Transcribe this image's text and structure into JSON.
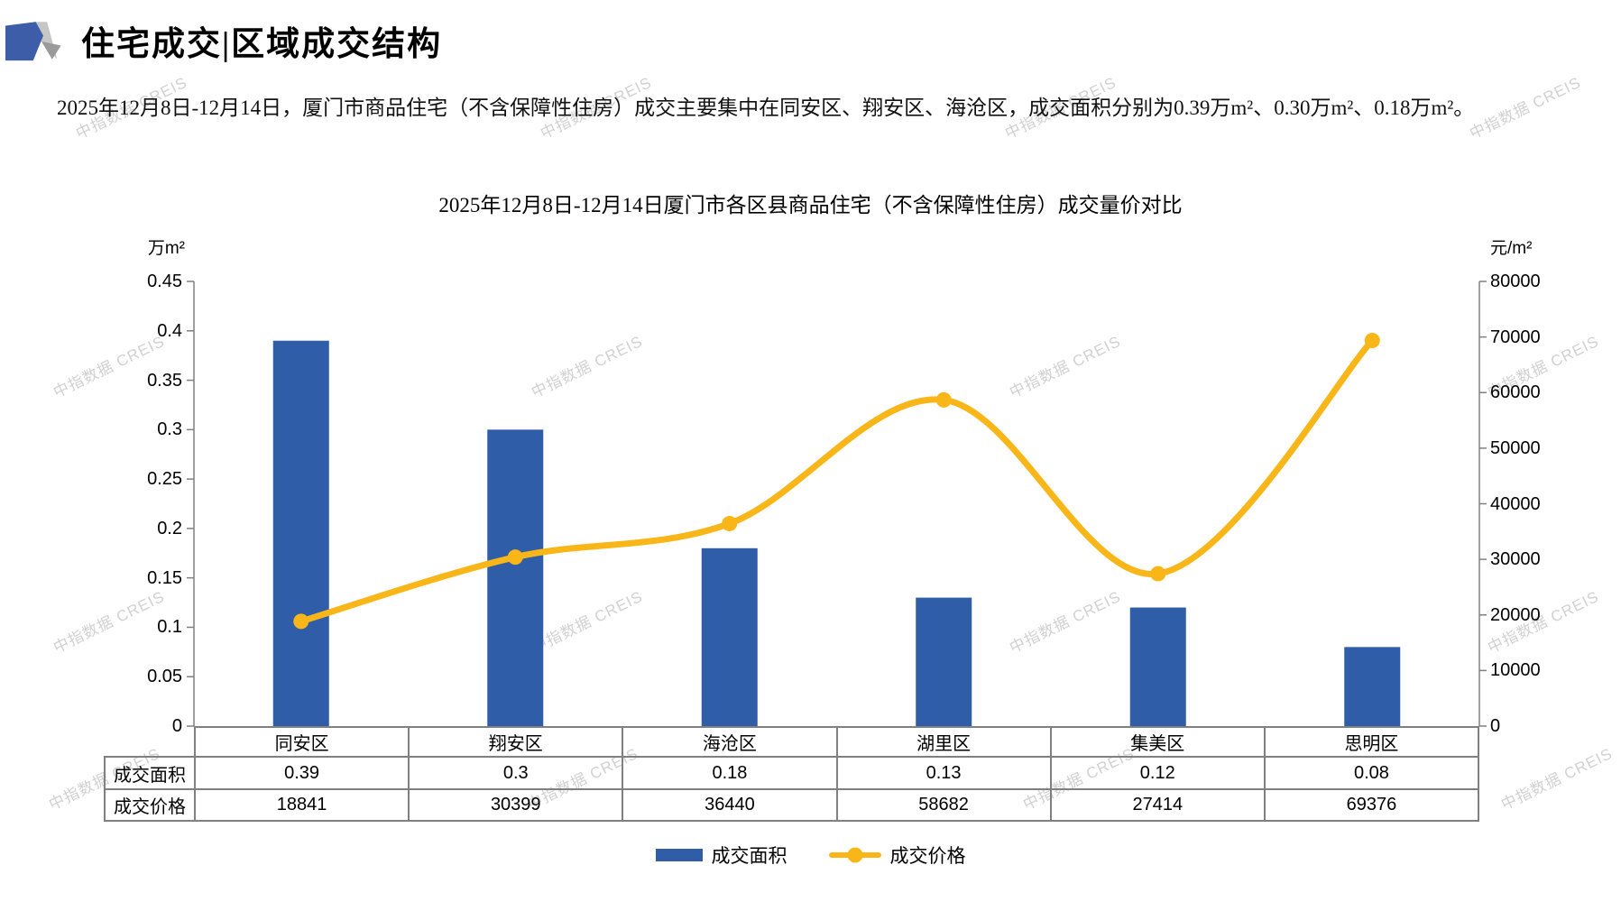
{
  "header": {
    "title": "住宅成交|区域成交结构"
  },
  "summary": "2025年12月8日-12月14日，厦门市商品住宅（不含保障性住房）成交主要集中在同安区、翔安区、海沧区，成交面积分别为0.39万m²、0.30万m²、0.18万m²。",
  "watermark_text": "中指数据 CREIS",
  "chart_data": {
    "type": "bar",
    "subtype": "bar+line combo, dual y-axis",
    "title": "2025年12月8日-12月14日厦门市各区县商品住宅（不含保障性住房）成交量价对比",
    "categories": [
      "同安区",
      "翔安区",
      "海沧区",
      "湖里区",
      "集美区",
      "思明区"
    ],
    "series": [
      {
        "name": "成交面积",
        "type": "bar",
        "axis": "left",
        "unit": "万m²",
        "color": "#2f5da8",
        "values": [
          0.39,
          0.3,
          0.18,
          0.13,
          0.12,
          0.08
        ]
      },
      {
        "name": "成交价格",
        "type": "line",
        "axis": "right",
        "unit": "元/m²",
        "color": "#f8b619",
        "values": [
          18841,
          30399,
          36440,
          58682,
          27414,
          69376
        ]
      }
    ],
    "left_axis": {
      "label": "万m²",
      "min": 0,
      "max": 0.45,
      "step": 0.05
    },
    "right_axis": {
      "label": "元/m²",
      "min": 0,
      "max": 80000,
      "step": 10000
    },
    "grid": false,
    "legend_position": "bottom",
    "line_smooth": true
  },
  "table": {
    "row_labels": [
      "成交面积",
      "成交价格"
    ]
  }
}
